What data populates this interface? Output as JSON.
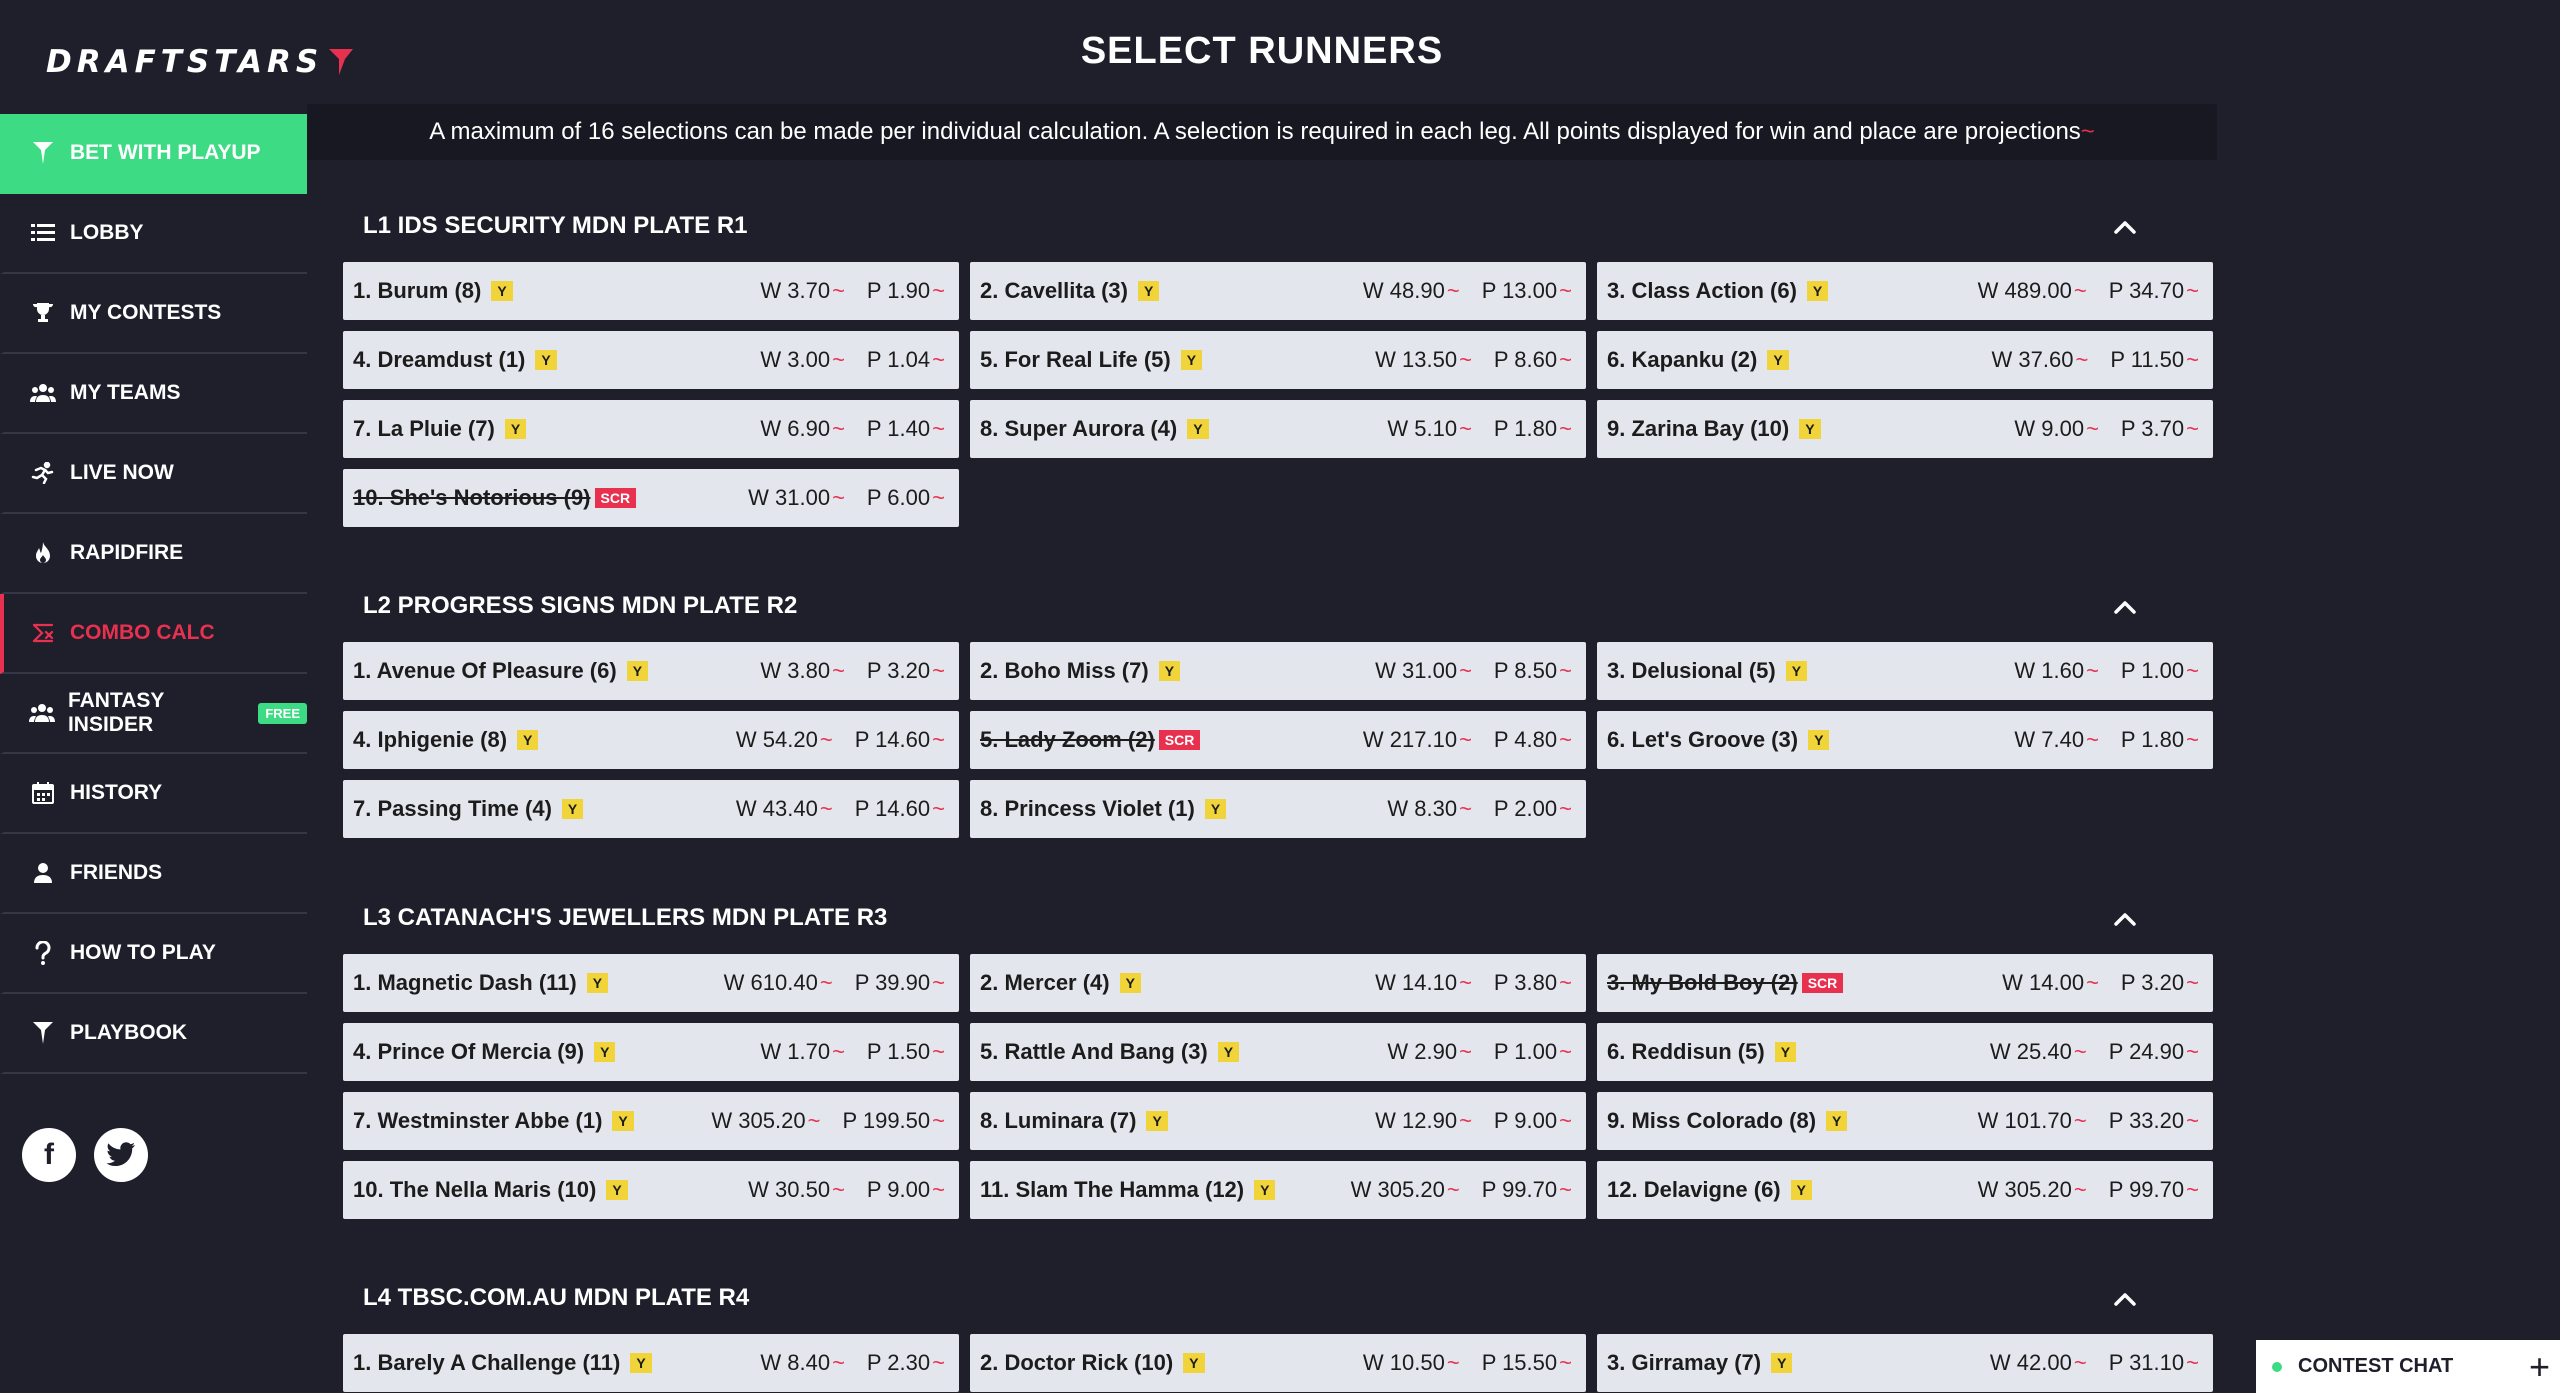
{
  "app": {
    "logo": "DRAFTSTARS"
  },
  "sidebar": {
    "items": [
      {
        "label": "BET WITH PLAYUP",
        "icon": "playup-icon",
        "type": "primary"
      },
      {
        "label": "LOBBY",
        "icon": "list-icon"
      },
      {
        "label": "MY CONTESTS",
        "icon": "trophy-icon"
      },
      {
        "label": "MY TEAMS",
        "icon": "team-icon"
      },
      {
        "label": "LIVE NOW",
        "icon": "running-icon"
      },
      {
        "label": "RAPIDFIRE",
        "icon": "flame-icon"
      },
      {
        "label": "COMBO CALC",
        "icon": "calculator-icon",
        "type": "active"
      },
      {
        "label": "FANTASY INSIDER",
        "icon": "team-icon",
        "badge": "FREE"
      },
      {
        "label": "HISTORY",
        "icon": "calendar-icon"
      },
      {
        "label": "FRIENDS",
        "icon": "friend-icon"
      },
      {
        "label": "HOW TO PLAY",
        "icon": "question-icon"
      },
      {
        "label": "PLAYBOOK",
        "icon": "playbook-icon"
      }
    ],
    "social": [
      "facebook-icon",
      "twitter-icon"
    ]
  },
  "main": {
    "title": "SELECT RUNNERS",
    "notice": "A maximum of 16 selections can be made per individual calculation. A selection is required in each leg. All points displayed for win and place are projections",
    "notice_suffix": "~",
    "legs": [
      {
        "title": "L1 IDS SECURITY MDN PLATE R1",
        "runners": [
          {
            "name": "1. Burum (8)",
            "flag": "Y",
            "win": "W 3.70",
            "place": "P 1.90"
          },
          {
            "name": "2. Cavellita (3)",
            "flag": "Y",
            "win": "W 48.90",
            "place": "P 13.00"
          },
          {
            "name": "3. Class Action (6)",
            "flag": "Y",
            "win": "W 489.00",
            "place": "P 34.70"
          },
          {
            "name": "4. Dreamdust (1)",
            "flag": "Y",
            "win": "W 3.00",
            "place": "P 1.04"
          },
          {
            "name": "5. For Real Life (5)",
            "flag": "Y",
            "win": "W 13.50",
            "place": "P 8.60"
          },
          {
            "name": "6. Kapanku (2)",
            "flag": "Y",
            "win": "W 37.60",
            "place": "P 11.50"
          },
          {
            "name": "7. La Pluie (7)",
            "flag": "Y",
            "win": "W 6.90",
            "place": "P 1.40"
          },
          {
            "name": "8. Super Aurora (4)",
            "flag": "Y",
            "win": "W 5.10",
            "place": "P 1.80"
          },
          {
            "name": "9. Zarina Bay (10)",
            "flag": "Y",
            "win": "W 9.00",
            "place": "P 3.70"
          },
          {
            "name": "10. She's Notorious (9)",
            "flag": "SCR",
            "scratched": true,
            "win": "W 31.00",
            "place": "P 6.00"
          }
        ]
      },
      {
        "title": "L2 PROGRESS SIGNS MDN PLATE R2",
        "runners": [
          {
            "name": "1. Avenue Of Pleasure (6)",
            "flag": "Y",
            "win": "W 3.80",
            "place": "P 3.20"
          },
          {
            "name": "2. Boho Miss (7)",
            "flag": "Y",
            "win": "W 31.00",
            "place": "P 8.50"
          },
          {
            "name": "3. Delusional (5)",
            "flag": "Y",
            "win": "W 1.60",
            "place": "P 1.00"
          },
          {
            "name": "4. Iphigenie (8)",
            "flag": "Y",
            "win": "W 54.20",
            "place": "P 14.60"
          },
          {
            "name": "5. Lady Zoom (2)",
            "flag": "SCR",
            "scratched": true,
            "win": "W 217.10",
            "place": "P 4.80"
          },
          {
            "name": "6. Let's Groove (3)",
            "flag": "Y",
            "win": "W 7.40",
            "place": "P 1.80"
          },
          {
            "name": "7. Passing Time (4)",
            "flag": "Y",
            "win": "W 43.40",
            "place": "P 14.60"
          },
          {
            "name": "8. Princess Violet (1)",
            "flag": "Y",
            "win": "W 8.30",
            "place": "P 2.00"
          }
        ]
      },
      {
        "title": "L3 CATANACH'S JEWELLERS MDN PLATE R3",
        "runners": [
          {
            "name": "1. Magnetic Dash (11)",
            "flag": "Y",
            "win": "W 610.40",
            "place": "P 39.90"
          },
          {
            "name": "2. Mercer (4)",
            "flag": "Y",
            "win": "W 14.10",
            "place": "P 3.80"
          },
          {
            "name": "3. My Bold Boy (2)",
            "flag": "SCR",
            "scratched": true,
            "win": "W 14.00",
            "place": "P 3.20"
          },
          {
            "name": "4. Prince Of Mercia (9)",
            "flag": "Y",
            "win": "W 1.70",
            "place": "P 1.50"
          },
          {
            "name": "5. Rattle And Bang (3)",
            "flag": "Y",
            "win": "W 2.90",
            "place": "P 1.00"
          },
          {
            "name": "6. Reddisun (5)",
            "flag": "Y",
            "win": "W 25.40",
            "place": "P 24.90"
          },
          {
            "name": "7. Westminster Abbe (1)",
            "flag": "Y",
            "win": "W 305.20",
            "place": "P 199.50"
          },
          {
            "name": "8. Luminara (7)",
            "flag": "Y",
            "win": "W 12.90",
            "place": "P 9.00"
          },
          {
            "name": "9. Miss Colorado (8)",
            "flag": "Y",
            "win": "W 101.70",
            "place": "P 33.20"
          },
          {
            "name": "10. The Nella Maris (10)",
            "flag": "Y",
            "win": "W 30.50",
            "place": "P 9.00"
          },
          {
            "name": "11. Slam The Hamma (12)",
            "flag": "Y",
            "win": "W 305.20",
            "place": "P 99.70"
          },
          {
            "name": "12. Delavigne (6)",
            "flag": "Y",
            "win": "W 305.20",
            "place": "P 99.70"
          }
        ]
      },
      {
        "title": "L4 TBSC.COM.AU MDN PLATE R4",
        "runners": [
          {
            "name": "1. Barely A Challenge (11)",
            "flag": "Y",
            "win": "W 8.40",
            "place": "P 2.30"
          },
          {
            "name": "2. Doctor Rick (10)",
            "flag": "Y",
            "win": "W 10.50",
            "place": "P 15.50"
          },
          {
            "name": "3. Girramay (7)",
            "flag": "Y",
            "win": "W 42.00",
            "place": "P 31.10"
          }
        ]
      }
    ]
  },
  "chat": {
    "label": "CONTEST CHAT",
    "action": "+"
  }
}
